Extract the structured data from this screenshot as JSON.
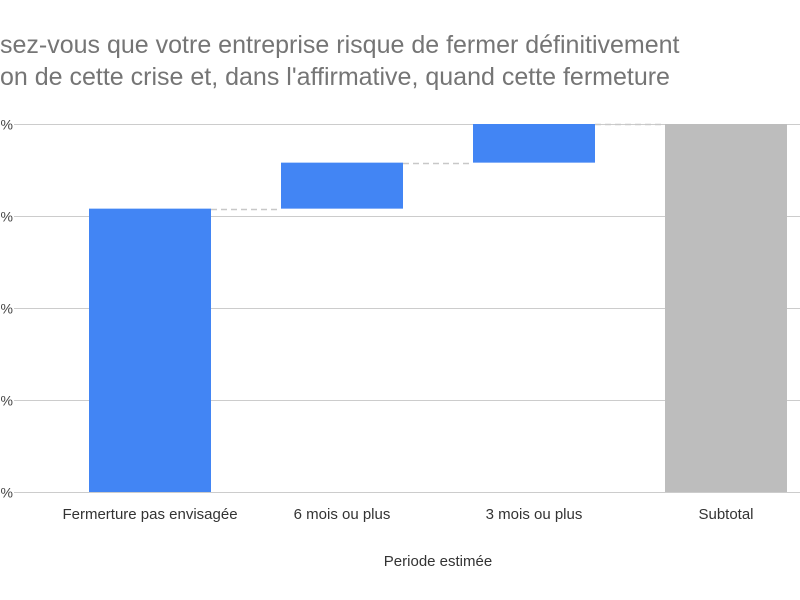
{
  "title_lines": [
    "sez-vous que votre entreprise risque de fermer définitivement",
    "on de cette crise et, dans l'affirmative, quand cette fermeture"
  ],
  "chart_data": {
    "type": "bar",
    "subtype": "waterfall",
    "title": "",
    "xlabel": "Periode estimée",
    "ylabel": "",
    "categories": [
      "Fermerture pas envisagée",
      "6 mois ou plus",
      "3 mois ou plus",
      "Subtotal"
    ],
    "values": [
      77,
      12.5,
      10.5,
      100
    ],
    "kinds": [
      "increase",
      "increase",
      "increase",
      "total"
    ],
    "ylim": [
      0,
      100
    ],
    "ytick_values": [
      0,
      25,
      50,
      75,
      100
    ],
    "ytick_labels": [
      "%",
      "%",
      "%",
      "%",
      "%"
    ],
    "grid": true,
    "connector_lines": true,
    "colors": {
      "increase": "#4285f4",
      "total": "#bdbdbd",
      "grid": "#cccccc",
      "connector": "#c8c8c8"
    }
  }
}
